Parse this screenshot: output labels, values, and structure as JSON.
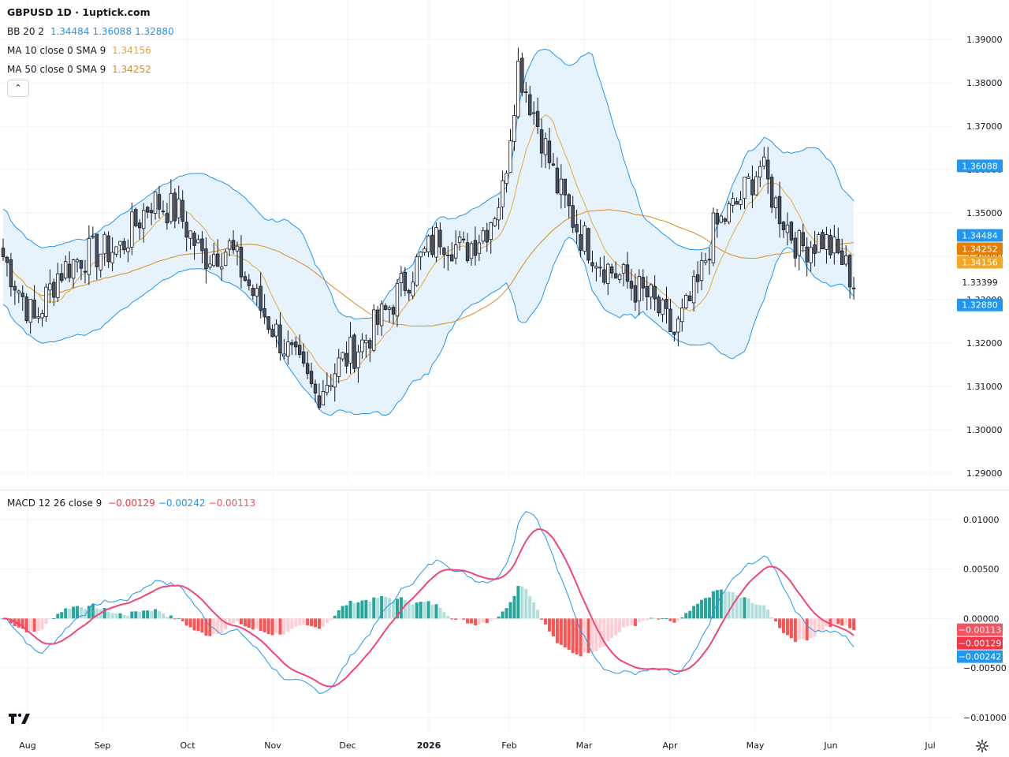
{
  "header": {
    "title": "GBPUSD 1D · 1uptick.com",
    "bb_label": "BB 20 2",
    "bb_values": [
      "1.34484",
      "1.36088",
      "1.32880"
    ],
    "ma10_label": "MA 10 close 0 SMA 9",
    "ma10_value": "1.34156",
    "ma50_label": "MA 50 close 0 SMA 9",
    "ma50_value": "1.34252",
    "macd_label": "MACD 12 26 close 9",
    "macd_values": [
      "−0.00129",
      "−0.00242",
      "−0.00113"
    ],
    "collapse_icon": "chevron-up-icon"
  },
  "colors": {
    "up_candle": "#ffffff",
    "down_candle": "#4c525e",
    "wick": "#131722",
    "bb_line": "#2196f3",
    "bb_fill": "#e3f2fd",
    "ma10": "#e8a838",
    "ma50": "#d98c1c",
    "macd_line": "#2196f3",
    "signal_line": "#f0457a",
    "hist_up_strong": "#26a69a",
    "hist_up_weak": "#b2dfdb",
    "hist_down_strong": "#ff5252",
    "hist_down_weak": "#ffcdd2",
    "label_blue": "#2196f3",
    "label_orange": "#e67e00",
    "label_gold": "#f5a623",
    "label_red": "#f23645",
    "label_pink": "#f7525f"
  },
  "chart_data": [
    {
      "type": "candlestick",
      "symbol": "GBPUSD",
      "timeframe": "1D",
      "x_labels": [
        "Aug",
        "Sep",
        "Oct",
        "Nov",
        "Dec",
        "2026",
        "Feb",
        "Mar",
        "Apr",
        "May",
        "Jun",
        "Jul"
      ],
      "y_ticks": [
        "1.29000",
        "1.30000",
        "1.31000",
        "1.32000",
        "1.33000",
        "1.34000",
        "1.35000",
        "1.36000",
        "1.37000",
        "1.38000",
        "1.39000"
      ],
      "ylim": [
        1.288,
        1.3915
      ],
      "last_price": "1.33399",
      "close_anchors": [
        [
          0,
          1.34
        ],
        [
          8,
          1.325
        ],
        [
          14,
          1.336
        ],
        [
          20,
          1.34
        ],
        [
          30,
          1.342
        ],
        [
          38,
          1.353
        ],
        [
          45,
          1.35
        ],
        [
          51,
          1.34
        ],
        [
          58,
          1.342
        ],
        [
          66,
          1.328
        ],
        [
          73,
          1.318
        ],
        [
          80,
          1.308
        ],
        [
          86,
          1.315
        ],
        [
          92,
          1.32
        ],
        [
          98,
          1.327
        ],
        [
          105,
          1.337
        ],
        [
          112,
          1.345
        ],
        [
          118,
          1.341
        ],
        [
          124,
          1.347
        ],
        [
          128,
          1.355
        ],
        [
          132,
          1.384
        ],
        [
          138,
          1.368
        ],
        [
          142,
          1.356
        ],
        [
          148,
          1.345
        ],
        [
          154,
          1.338
        ],
        [
          160,
          1.334
        ],
        [
          166,
          1.33
        ],
        [
          172,
          1.322
        ],
        [
          178,
          1.333
        ],
        [
          182,
          1.346
        ],
        [
          188,
          1.352
        ],
        [
          194,
          1.361
        ],
        [
          198,
          1.352
        ],
        [
          204,
          1.342
        ],
        [
          210,
          1.344
        ],
        [
          215,
          1.339
        ],
        [
          218,
          1.334
        ]
      ],
      "series": [
        {
          "name": "BB 20 2",
          "values_last": [
            1.34484,
            1.36088,
            1.3288
          ]
        },
        {
          "name": "MA 10 close 0 SMA 9",
          "value_last": 1.34156
        },
        {
          "name": "MA 50 close 0 SMA 9",
          "value_last": 1.34252
        }
      ],
      "price_labels": [
        {
          "text": "1.36088",
          "value": 1.36088,
          "color": "#2196f3"
        },
        {
          "text": "1.34484",
          "value": 1.34484,
          "color": "#2196f3"
        },
        {
          "text": "1.34252",
          "value": 1.34252,
          "color": "#e67e00"
        },
        {
          "text": "1.34156",
          "value": 1.34156,
          "color": "#f5a623"
        },
        {
          "text": "1.33399",
          "value": 1.33399,
          "color": "#ffffff"
        },
        {
          "text": "1.32880",
          "value": 1.3288,
          "color": "#2196f3"
        }
      ]
    },
    {
      "type": "line",
      "name": "MACD 12 26 close 9",
      "y_ticks": [
        "0.01000",
        "0.00500",
        "0.00000",
        "−0.00500",
        "−0.01000"
      ],
      "ylim": [
        -0.0112,
        0.0115
      ],
      "last_values": {
        "histogram": -0.00113,
        "macd": -0.00129,
        "signal": -0.00242
      },
      "value_labels": [
        {
          "text": "−0.00113",
          "value": -0.00113,
          "color": "#f7525f"
        },
        {
          "text": "−0.00129",
          "value": -0.00129,
          "color": "#f23645"
        },
        {
          "text": "−0.00242",
          "value": -0.00242,
          "color": "#2196f3"
        }
      ]
    }
  ]
}
